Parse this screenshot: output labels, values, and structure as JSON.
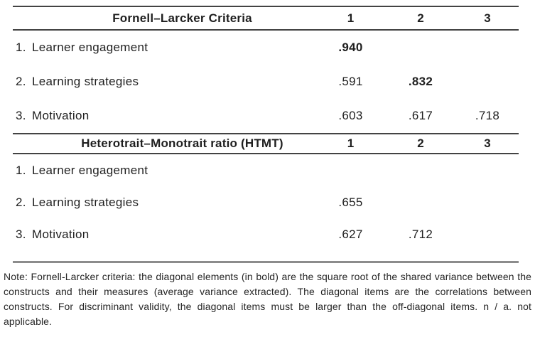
{
  "sections": [
    {
      "title": "Fornell–Larcker Criteria",
      "columns": [
        "1",
        "2",
        "3"
      ],
      "rows": [
        {
          "num": "1.",
          "label": "Learner engagement",
          "values": {
            "c1": ".940",
            "c2": "",
            "c3": ""
          }
        },
        {
          "num": "2.",
          "label": "Learning strategies",
          "values": {
            "c1": ".591",
            "c2": ".832",
            "c3": ""
          }
        },
        {
          "num": "3.",
          "label": "Motivation",
          "values": {
            "c1": ".603",
            "c2": ".617",
            "c3": ".718"
          }
        }
      ]
    },
    {
      "title": "Heterotrait–Monotrait ratio (HTMT)",
      "columns": [
        "1",
        "2",
        "3"
      ],
      "rows": [
        {
          "num": "1.",
          "label": "Learner engagement",
          "values": {
            "c1": "",
            "c2": "",
            "c3": ""
          }
        },
        {
          "num": "2.",
          "label": "Learning strategies",
          "values": {
            "c1": ".655",
            "c2": "",
            "c3": ""
          }
        },
        {
          "num": "3.",
          "label": "Motivation",
          "values": {
            "c1": ".627",
            "c2": ".712",
            "c3": ""
          }
        }
      ]
    }
  ],
  "note": "Note: Fornell-Larcker criteria: the diagonal elements (in bold) are the square root of the shared variance between the constructs and their measures (average variance extracted). The diagonal items are the correlations between constructs. For discriminant validity, the diagonal items must be larger than the off-diagonal items. n / a. not applicable.",
  "colors": {
    "rule_dark": "#434343",
    "rule_gray": "#8c8c8c",
    "text": "#1f1f1f"
  }
}
